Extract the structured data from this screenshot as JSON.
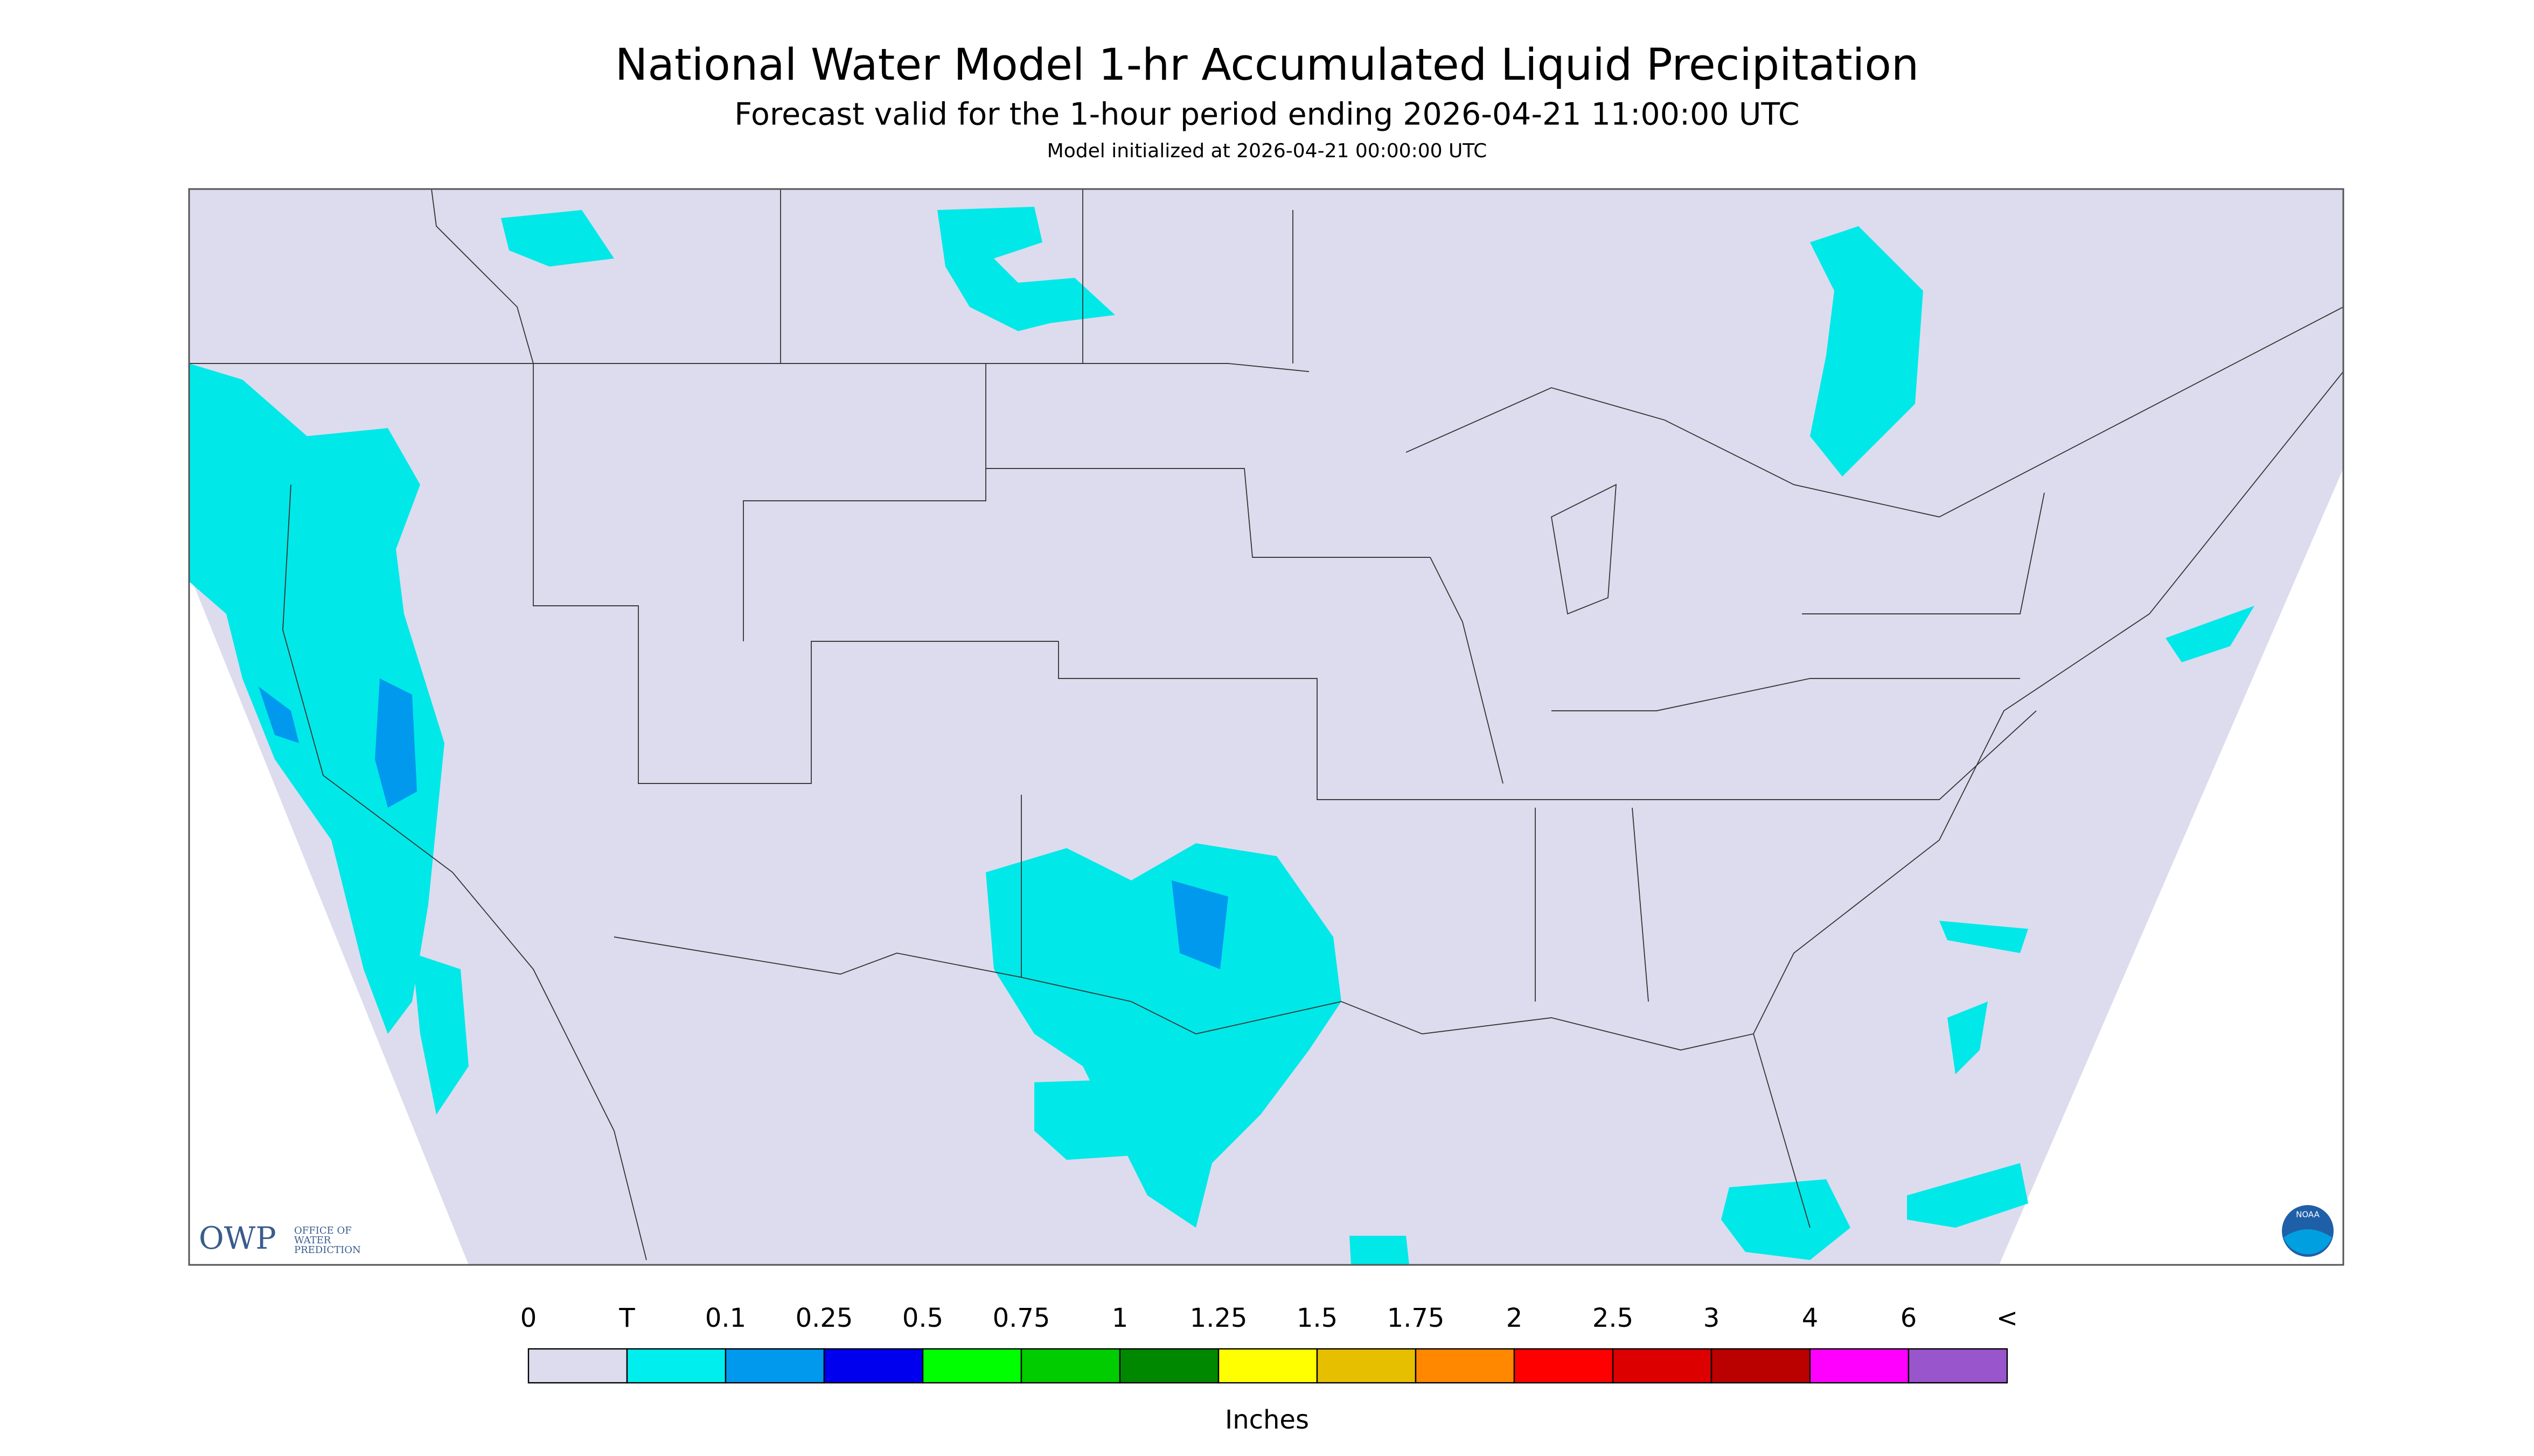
{
  "header": {
    "title": "National Water Model 1-hr Accumulated Liquid Precipitation",
    "subtitle": "Forecast valid for the 1-hour period ending 2026-04-21 11:00:00 UTC",
    "note": "Model initialized at 2026-04-21 00:00:00 UTC"
  },
  "map": {
    "background": "#dcdcee",
    "precip_color": "#00e8e8"
  },
  "legend": {
    "labels": [
      "0",
      "T",
      "0.1",
      "0.25",
      "0.5",
      "0.75",
      "1",
      "1.25",
      "1.5",
      "1.75",
      "2",
      "2.5",
      "3",
      "4",
      "6",
      "<"
    ],
    "colors": [
      "#dcdcee",
      "#00eeee",
      "#0099ee",
      "#0000ee",
      "#00ff00",
      "#00cc00",
      "#008800",
      "#ffff00",
      "#e6c000",
      "#ff8800",
      "#ff0000",
      "#dd0000",
      "#bb0000",
      "#ff00ff",
      "#9955cc"
    ],
    "units": "Inches"
  },
  "logos": {
    "owp": "OWP",
    "owp_text": [
      "OFFICE OF",
      "WATER",
      "PREDICTION"
    ],
    "noaa": "NOAA"
  }
}
